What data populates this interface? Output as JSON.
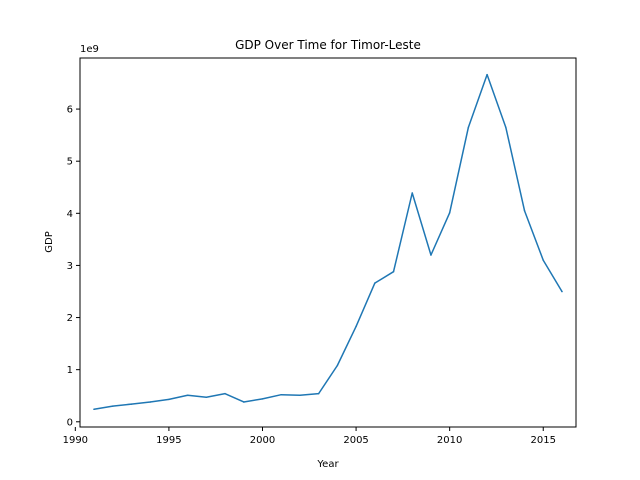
{
  "chart_data": {
    "type": "line",
    "title": "GDP Over Time for Timor-Leste",
    "xlabel": "Year",
    "ylabel": "GDP",
    "y_offset_label": "1e9",
    "xlim": [
      1990.25,
      2016.75
    ],
    "ylim": [
      -0.1,
      6.98
    ],
    "x_ticks": [
      1990,
      1995,
      2000,
      2005,
      2010,
      2015
    ],
    "y_ticks": [
      0,
      1,
      2,
      3,
      4,
      5,
      6
    ],
    "grid": false,
    "line_color": "#1f77b4",
    "series": [
      {
        "x": [
          1991,
          1992,
          1993,
          1994,
          1995,
          1996,
          1997,
          1998,
          1999,
          2000,
          2001,
          2002,
          2003,
          2004,
          2005,
          2006,
          2007,
          2008,
          2009,
          2010,
          2011,
          2012,
          2013,
          2014,
          2015,
          2016
        ],
        "y": [
          0.24,
          0.3,
          0.34,
          0.38,
          0.43,
          0.51,
          0.47,
          0.54,
          0.38,
          0.44,
          0.52,
          0.51,
          0.54,
          1.08,
          1.83,
          2.66,
          2.88,
          4.39,
          3.2,
          4.01,
          5.65,
          6.66,
          5.65,
          4.05,
          3.1,
          2.5
        ]
      }
    ]
  }
}
